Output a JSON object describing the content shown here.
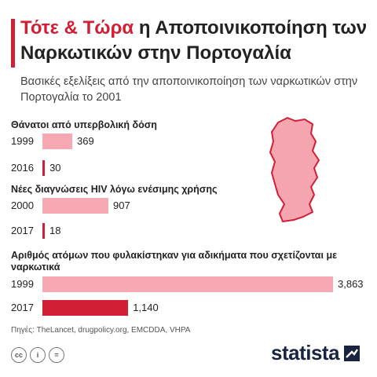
{
  "header": {
    "title_accent": "Τότε & Τώρα",
    "title_rest": " η Αποποινικοποίηση των Ναρκωτικών στην Πορτογαλία",
    "subtitle": "Βασικές εξελίξεις από την αποποινικοποίηση των ναρκωτικών στην Πορτογαλία το 2001"
  },
  "chart_data": [
    {
      "type": "bar",
      "title": "Θάνατοι από υπερβολική δόση",
      "categories": [
        "1999",
        "2016"
      ],
      "values": [
        369,
        30
      ],
      "value_labels": [
        "369",
        "30"
      ]
    },
    {
      "type": "bar",
      "title": "Νέες διαγνώσεις HIV λόγω ενέσιμης χρήσης",
      "categories": [
        "2000",
        "2017"
      ],
      "values": [
        907,
        18
      ],
      "value_labels": [
        "907",
        "18"
      ]
    },
    {
      "type": "bar",
      "title": "Αριθμός ατόμων που φυλακίστηκαν για αδικήματα που σχετίζονται με ναρκωτικά",
      "categories": [
        "1999",
        "2017"
      ],
      "values": [
        3863,
        1140
      ],
      "value_labels": [
        "3,863",
        "1,140"
      ]
    }
  ],
  "colors": {
    "accent": "#d11f35",
    "light_bar": "#f7a9b3",
    "map_fill": "#f4a5b0",
    "logo": "#1a2440"
  },
  "map": {
    "icon": "portugal-map-icon"
  },
  "footer": {
    "sources": "Πηγές: TheLancet, drugpolicy.org, EMCDDA, VHPA",
    "cc_icons": [
      "cc",
      "i",
      "="
    ],
    "logo": "statista"
  }
}
